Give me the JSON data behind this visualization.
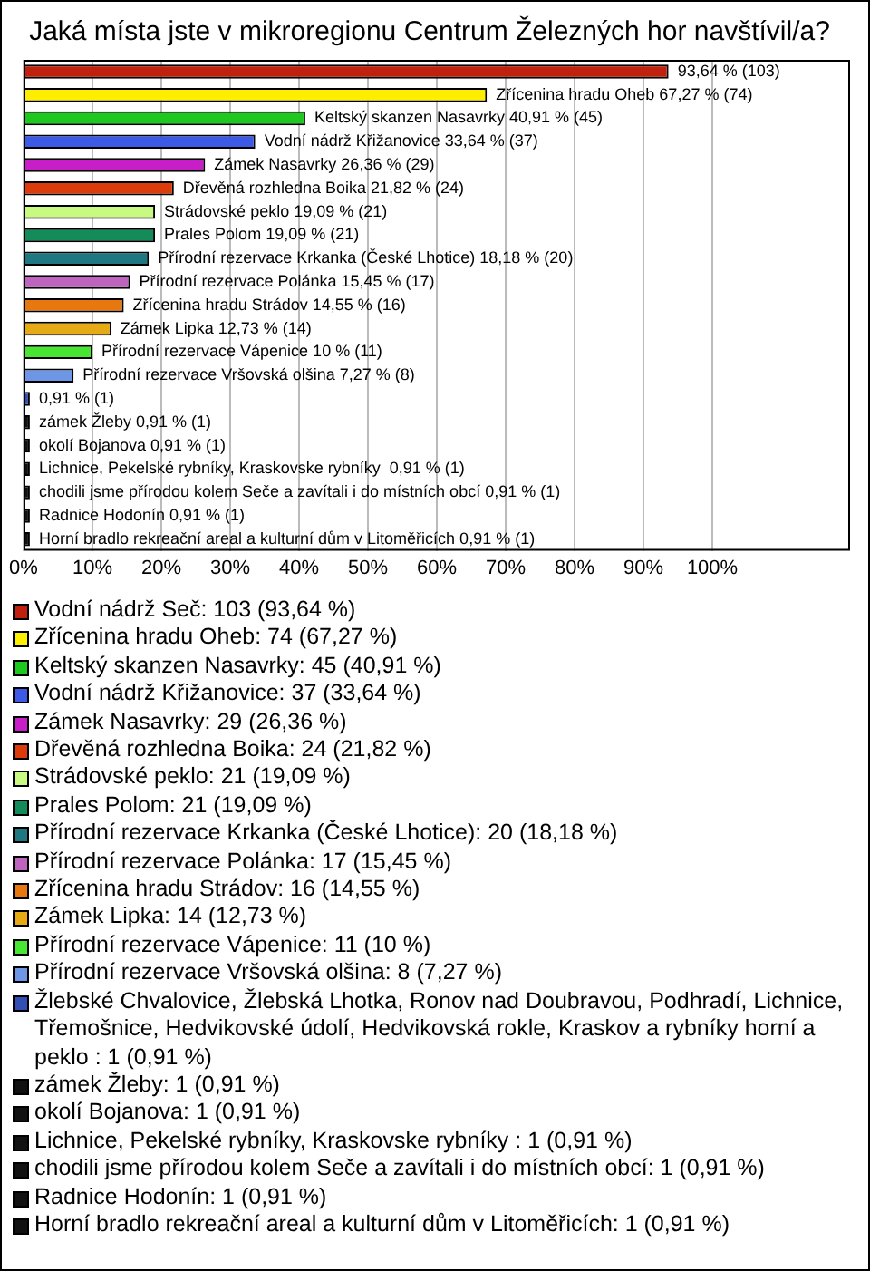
{
  "chart_data": {
    "type": "bar",
    "orientation": "horizontal",
    "title": "Jaká místa jste v mikroregionu Centrum Železných hor navštívil/a?",
    "categories": [
      null,
      null,
      null,
      null,
      null,
      null,
      null,
      null,
      null,
      null,
      null,
      null,
      null,
      null,
      null,
      null,
      null,
      null,
      null,
      null,
      null
    ],
    "xlim": [
      0,
      120
    ],
    "xticks": [
      {
        "value": 0,
        "label": "0%"
      },
      {
        "value": 10,
        "label": "10%"
      },
      {
        "value": 20,
        "label": "20%"
      },
      {
        "value": 30,
        "label": "30%"
      },
      {
        "value": 40,
        "label": "40%"
      },
      {
        "value": 50,
        "label": "50%"
      },
      {
        "value": 60,
        "label": "60%"
      },
      {
        "value": 70,
        "label": "70%"
      },
      {
        "value": 80,
        "label": "80%"
      },
      {
        "value": 90,
        "label": "90%"
      },
      {
        "value": 100,
        "label": "100%"
      }
    ],
    "grid": "x",
    "legend": "bottom",
    "tick_labels": "x",
    "series": [
      {
        "name": "Vodní nádrž Seč: 103 (93,64 %)",
        "color": "#c0210f",
        "values": [
          93.64,
          null,
          null,
          null,
          null,
          null,
          null,
          null,
          null,
          null,
          null,
          null,
          null,
          null,
          null,
          null,
          null,
          null,
          null,
          null,
          null
        ],
        "value_labels": [
          "93,64 % (103)",
          null,
          null,
          null,
          null,
          null,
          null,
          null,
          null,
          null,
          null,
          null,
          null,
          null,
          null,
          null,
          null,
          null,
          null,
          null,
          null
        ]
      },
      {
        "name": "Zřícenina hradu Oheb: 74 (67,27 %)",
        "color": "#ffee00",
        "values": [
          null,
          67.27,
          null,
          null,
          null,
          null,
          null,
          null,
          null,
          null,
          null,
          null,
          null,
          null,
          null,
          null,
          null,
          null,
          null,
          null,
          null
        ],
        "value_labels": [
          null,
          "Zřícenina hradu Oheb 67,27 % (74)",
          null,
          null,
          null,
          null,
          null,
          null,
          null,
          null,
          null,
          null,
          null,
          null,
          null,
          null,
          null,
          null,
          null,
          null,
          null
        ]
      },
      {
        "name": "Keltský skanzen Nasavrky: 45 (40,91 %)",
        "color": "#1ec81e",
        "values": [
          null,
          null,
          40.91,
          null,
          null,
          null,
          null,
          null,
          null,
          null,
          null,
          null,
          null,
          null,
          null,
          null,
          null,
          null,
          null,
          null,
          null
        ],
        "value_labels": [
          null,
          null,
          "Keltský skanzen Nasavrky 40,91 % (45)",
          null,
          null,
          null,
          null,
          null,
          null,
          null,
          null,
          null,
          null,
          null,
          null,
          null,
          null,
          null,
          null,
          null,
          null
        ]
      },
      {
        "name": "Vodní nádrž Křižanovice: 37 (33,64 %)",
        "color": "#3c5ae6",
        "values": [
          null,
          null,
          null,
          33.64,
          null,
          null,
          null,
          null,
          null,
          null,
          null,
          null,
          null,
          null,
          null,
          null,
          null,
          null,
          null,
          null,
          null
        ],
        "value_labels": [
          null,
          null,
          null,
          "Vodní nádrž Křižanovice 33,64 % (37)",
          null,
          null,
          null,
          null,
          null,
          null,
          null,
          null,
          null,
          null,
          null,
          null,
          null,
          null,
          null,
          null,
          null
        ]
      },
      {
        "name": "Zámek Nasavrky: 29 (26,36 %)",
        "color": "#c81ec8",
        "values": [
          null,
          null,
          null,
          null,
          26.36,
          null,
          null,
          null,
          null,
          null,
          null,
          null,
          null,
          null,
          null,
          null,
          null,
          null,
          null,
          null,
          null
        ],
        "value_labels": [
          null,
          null,
          null,
          null,
          "Zámek Nasavrky 26,36 % (29)",
          null,
          null,
          null,
          null,
          null,
          null,
          null,
          null,
          null,
          null,
          null,
          null,
          null,
          null,
          null,
          null
        ]
      },
      {
        "name": "Dřevěná rozhledna Boika: 24 (21,82 %)",
        "color": "#dc3c0a",
        "values": [
          null,
          null,
          null,
          null,
          null,
          21.82,
          null,
          null,
          null,
          null,
          null,
          null,
          null,
          null,
          null,
          null,
          null,
          null,
          null,
          null,
          null
        ],
        "value_labels": [
          null,
          null,
          null,
          null,
          null,
          "Dřevěná rozhledna Boika 21,82 % (24)",
          null,
          null,
          null,
          null,
          null,
          null,
          null,
          null,
          null,
          null,
          null,
          null,
          null,
          null,
          null
        ]
      },
      {
        "name": "Strádovské peklo: 21 (19,09 %)",
        "color": "#c8fa82",
        "values": [
          null,
          null,
          null,
          null,
          null,
          null,
          19.09,
          null,
          null,
          null,
          null,
          null,
          null,
          null,
          null,
          null,
          null,
          null,
          null,
          null,
          null
        ],
        "value_labels": [
          null,
          null,
          null,
          null,
          null,
          null,
          "Strádovské peklo 19,09 % (21)",
          null,
          null,
          null,
          null,
          null,
          null,
          null,
          null,
          null,
          null,
          null,
          null,
          null,
          null
        ]
      },
      {
        "name": "Prales Polom: 21 (19,09 %)",
        "color": "#148c5a",
        "values": [
          null,
          null,
          null,
          null,
          null,
          null,
          null,
          19.09,
          null,
          null,
          null,
          null,
          null,
          null,
          null,
          null,
          null,
          null,
          null,
          null,
          null
        ],
        "value_labels": [
          null,
          null,
          null,
          null,
          null,
          null,
          null,
          "Prales Polom 19,09 % (21)",
          null,
          null,
          null,
          null,
          null,
          null,
          null,
          null,
          null,
          null,
          null,
          null,
          null
        ]
      },
      {
        "name": "Přírodní rezervace Krkanka (České Lhotice): 20 (18,18 %)",
        "color": "#1e7882",
        "values": [
          null,
          null,
          null,
          null,
          null,
          null,
          null,
          null,
          18.18,
          null,
          null,
          null,
          null,
          null,
          null,
          null,
          null,
          null,
          null,
          null,
          null
        ],
        "value_labels": [
          null,
          null,
          null,
          null,
          null,
          null,
          null,
          null,
          "Přírodní rezervace Krkanka (České Lhotice) 18,18 % (20)",
          null,
          null,
          null,
          null,
          null,
          null,
          null,
          null,
          null,
          null,
          null,
          null
        ]
      },
      {
        "name": "Přírodní rezervace Polánka: 17 (15,45 %)",
        "color": "#be64be",
        "values": [
          null,
          null,
          null,
          null,
          null,
          null,
          null,
          null,
          null,
          15.45,
          null,
          null,
          null,
          null,
          null,
          null,
          null,
          null,
          null,
          null,
          null
        ],
        "value_labels": [
          null,
          null,
          null,
          null,
          null,
          null,
          null,
          null,
          null,
          "Přírodní rezervace Polánka 15,45 % (17)",
          null,
          null,
          null,
          null,
          null,
          null,
          null,
          null,
          null,
          null,
          null
        ]
      },
      {
        "name": "Zřícenina hradu Strádov: 16 (14,55 %)",
        "color": "#e6780f",
        "values": [
          null,
          null,
          null,
          null,
          null,
          null,
          null,
          null,
          null,
          null,
          14.55,
          null,
          null,
          null,
          null,
          null,
          null,
          null,
          null,
          null,
          null
        ],
        "value_labels": [
          null,
          null,
          null,
          null,
          null,
          null,
          null,
          null,
          null,
          null,
          "Zřícenina hradu Strádov 14,55 % (16)",
          null,
          null,
          null,
          null,
          null,
          null,
          null,
          null,
          null,
          null
        ]
      },
      {
        "name": "Zámek Lipka: 14 (12,73 %)",
        "color": "#e6aa14",
        "values": [
          null,
          null,
          null,
          null,
          null,
          null,
          null,
          null,
          null,
          null,
          null,
          12.73,
          null,
          null,
          null,
          null,
          null,
          null,
          null,
          null,
          null
        ],
        "value_labels": [
          null,
          null,
          null,
          null,
          null,
          null,
          null,
          null,
          null,
          null,
          null,
          "Zámek Lipka 12,73 % (14)",
          null,
          null,
          null,
          null,
          null,
          null,
          null,
          null,
          null
        ]
      },
      {
        "name": "Přírodní rezervace Vápenice: 11 (10 %)",
        "color": "#46e632",
        "values": [
          null,
          null,
          null,
          null,
          null,
          null,
          null,
          null,
          null,
          null,
          null,
          null,
          10,
          null,
          null,
          null,
          null,
          null,
          null,
          null,
          null
        ],
        "value_labels": [
          null,
          null,
          null,
          null,
          null,
          null,
          null,
          null,
          null,
          null,
          null,
          null,
          "Přírodní rezervace Vápenice 10 % (11)",
          null,
          null,
          null,
          null,
          null,
          null,
          null,
          null
        ]
      },
      {
        "name": "Přírodní rezervace Vršovská olšina: 8 (7,27 %)",
        "color": "#6e96e6",
        "values": [
          null,
          null,
          null,
          null,
          null,
          null,
          null,
          null,
          null,
          null,
          null,
          null,
          null,
          7.27,
          null,
          null,
          null,
          null,
          null,
          null,
          null
        ],
        "value_labels": [
          null,
          null,
          null,
          null,
          null,
          null,
          null,
          null,
          null,
          null,
          null,
          null,
          null,
          "Přírodní rezervace Vršovská olšina 7,27 % (8)",
          null,
          null,
          null,
          null,
          null,
          null,
          null
        ]
      },
      {
        "name": "Žlebské Chvalovice, Žlebská Lhotka, Ronov nad Doubravou, Podhradí, Lichnice, Třemošnice, Hedvikovské údolí, Hedvikovská rokle,  Kraskov a rybníky horní a peklo : 1 (0,91 %)",
        "color": "#3250b4",
        "values": [
          null,
          null,
          null,
          null,
          null,
          null,
          null,
          null,
          null,
          null,
          null,
          null,
          null,
          null,
          0.91,
          null,
          null,
          null,
          null,
          null,
          null
        ],
        "value_labels": [
          null,
          null,
          null,
          null,
          null,
          null,
          null,
          null,
          null,
          null,
          null,
          null,
          null,
          null,
          "0,91 % (1)",
          null,
          null,
          null,
          null,
          null,
          null
        ]
      },
      {
        "name": "zámek Žleby: 1 (0,91 %)",
        "color": "#111111",
        "values": [
          null,
          null,
          null,
          null,
          null,
          null,
          null,
          null,
          null,
          null,
          null,
          null,
          null,
          null,
          null,
          0.91,
          null,
          null,
          null,
          null,
          null
        ],
        "value_labels": [
          null,
          null,
          null,
          null,
          null,
          null,
          null,
          null,
          null,
          null,
          null,
          null,
          null,
          null,
          null,
          "zámek Žleby 0,91 % (1)",
          null,
          null,
          null,
          null,
          null
        ]
      },
      {
        "name": "okolí Bojanova: 1 (0,91 %)",
        "color": "#111111",
        "values": [
          null,
          null,
          null,
          null,
          null,
          null,
          null,
          null,
          null,
          null,
          null,
          null,
          null,
          null,
          null,
          null,
          0.91,
          null,
          null,
          null,
          null
        ],
        "value_labels": [
          null,
          null,
          null,
          null,
          null,
          null,
          null,
          null,
          null,
          null,
          null,
          null,
          null,
          null,
          null,
          null,
          "okolí Bojanova 0,91 % (1)",
          null,
          null,
          null,
          null
        ]
      },
      {
        "name": "Lichnice, Pekelské rybníky, Kraskovske rybníky : 1 (0,91 %)",
        "color": "#111111",
        "values": [
          null,
          null,
          null,
          null,
          null,
          null,
          null,
          null,
          null,
          null,
          null,
          null,
          null,
          null,
          null,
          null,
          null,
          0.91,
          null,
          null,
          null
        ],
        "value_labels": [
          null,
          null,
          null,
          null,
          null,
          null,
          null,
          null,
          null,
          null,
          null,
          null,
          null,
          null,
          null,
          null,
          null,
          "Lichnice, Pekelské rybníky, Kraskovske rybníky  0,91 % (1)",
          null,
          null,
          null
        ]
      },
      {
        "name": "chodili jsme přírodou kolem Seče a zavítali i do místních obcí: 1 (0,91 %)",
        "color": "#111111",
        "values": [
          null,
          null,
          null,
          null,
          null,
          null,
          null,
          null,
          null,
          null,
          null,
          null,
          null,
          null,
          null,
          null,
          null,
          null,
          0.91,
          null,
          null
        ],
        "value_labels": [
          null,
          null,
          null,
          null,
          null,
          null,
          null,
          null,
          null,
          null,
          null,
          null,
          null,
          null,
          null,
          null,
          null,
          null,
          "chodili jsme přírodou kolem Seče a zavítali i do místních obcí 0,91 % (1)",
          null,
          null
        ]
      },
      {
        "name": "Radnice Hodonín: 1 (0,91 %)",
        "color": "#111111",
        "values": [
          null,
          null,
          null,
          null,
          null,
          null,
          null,
          null,
          null,
          null,
          null,
          null,
          null,
          null,
          null,
          null,
          null,
          null,
          null,
          0.91,
          null
        ],
        "value_labels": [
          null,
          null,
          null,
          null,
          null,
          null,
          null,
          null,
          null,
          null,
          null,
          null,
          null,
          null,
          null,
          null,
          null,
          null,
          null,
          "Radnice Hodonín 0,91 % (1)",
          null
        ]
      },
      {
        "name": "Horní bradlo rekreační areal a kulturní dům v Litoměřicích: 1 (0,91 %)",
        "color": "#111111",
        "values": [
          null,
          null,
          null,
          null,
          null,
          null,
          null,
          null,
          null,
          null,
          null,
          null,
          null,
          null,
          null,
          null,
          null,
          null,
          null,
          null,
          0.91
        ],
        "value_labels": [
          null,
          null,
          null,
          null,
          null,
          null,
          null,
          null,
          null,
          null,
          null,
          null,
          null,
          null,
          null,
          null,
          null,
          null,
          null,
          null,
          "Horní bradlo rekreační areal a kulturní dům v Litoměřicích 0,91 % (1)"
        ]
      }
    ]
  }
}
